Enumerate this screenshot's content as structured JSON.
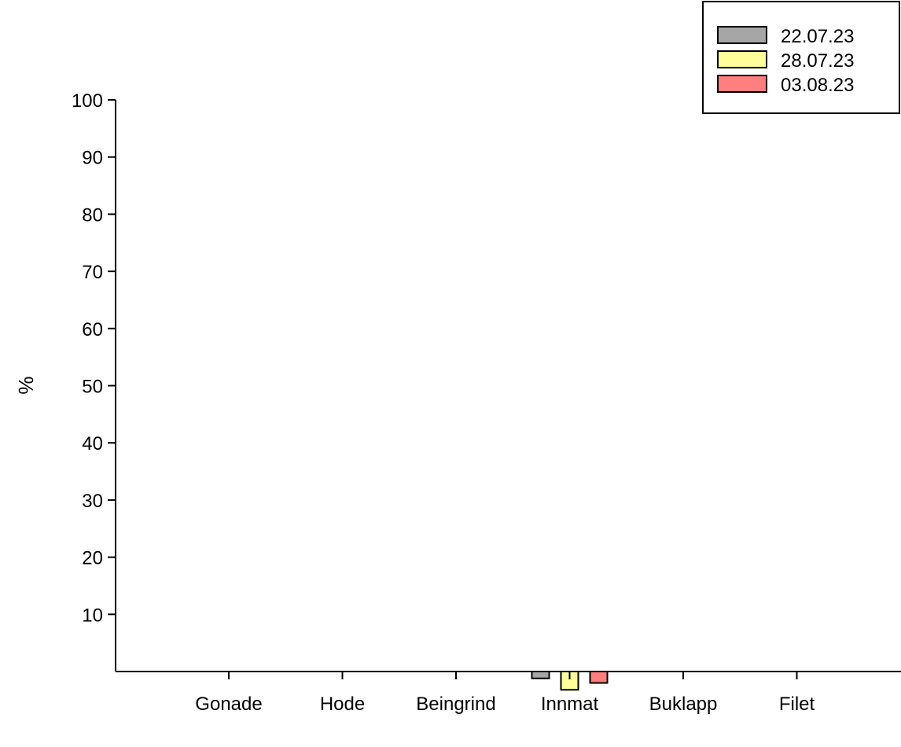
{
  "chart_data": {
    "type": "bar",
    "title": "",
    "xlabel": "",
    "ylabel": "%",
    "ylim": [
      0,
      100
    ],
    "yticks": [
      10,
      20,
      30,
      40,
      50,
      60,
      70,
      80,
      90,
      100
    ],
    "grid": false,
    "legend_position": "top-right",
    "categories": [
      "Gonade",
      "Hode",
      "Beingrind",
      "Innmat",
      "Buklapp",
      "Filet"
    ],
    "series": [
      {
        "name": "22.07.23",
        "color": "#a6a6a6",
        "values": [
          0,
          0,
          0,
          -1.2,
          0,
          0
        ]
      },
      {
        "name": "28.07.23",
        "color": "#ffff99",
        "values": [
          0,
          0,
          0,
          -3.2,
          0,
          0
        ]
      },
      {
        "name": "03.08.23",
        "color": "#ff7f7f",
        "values": [
          0,
          0,
          0,
          -2.0,
          0,
          0
        ]
      }
    ]
  }
}
